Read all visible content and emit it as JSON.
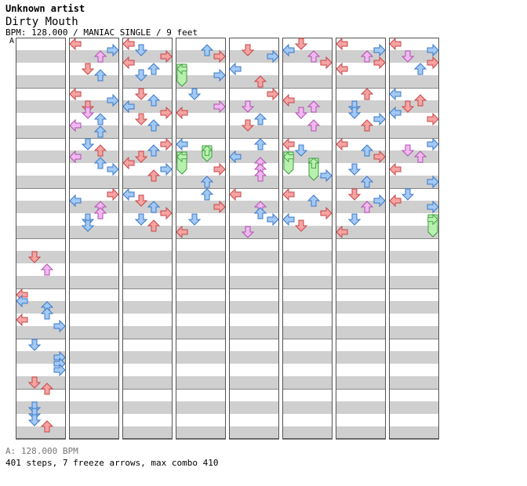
{
  "song": {
    "artist": "Unknown artist",
    "title": "Dirty Mouth",
    "meta": "BPM: 128.000 / MANIAC SINGLE / 9 feet",
    "bpm_marker": "A"
  },
  "footer": {
    "bpm": "A: 128.000 BPM",
    "stats": "401 steps, 7 freeze arrows, max combo 410"
  },
  "colors": {
    "quarter": "#f5a3a3",
    "quarter_stroke": "#c84646",
    "eighth": "#a3c9f5",
    "eighth_stroke": "#3a78c8",
    "sixteenth": "#f0b8f0",
    "sixteenth_stroke": "#b050b0",
    "freeze": "#b8f0b0",
    "freeze_stroke": "#3c9c3c",
    "stripe": "#cfcfcf",
    "background": "#ffffff"
  },
  "icons": [
    "left-arrow-icon",
    "down-arrow-icon",
    "up-arrow-icon",
    "right-arrow-icon",
    "freeze-arrow-icon"
  ],
  "chart_data": {
    "type": "step-chart",
    "mode": "MANIAC SINGLE",
    "difficulty_feet": 9,
    "bpm": 128.0,
    "lanes": [
      "left",
      "down",
      "up",
      "right"
    ],
    "columns": 8,
    "measures_per_column": 8,
    "steps": 401,
    "freeze_arrows": 7,
    "max_combo": 410,
    "notes": [
      {
        "m": 4,
        "b": 0.5,
        "lane": 1,
        "k": "q"
      },
      {
        "m": 4,
        "b": 1,
        "lane": 2,
        "k": "s"
      },
      {
        "m": 5,
        "b": 0,
        "lane": 0,
        "k": "q"
      },
      {
        "m": 5,
        "b": 0.25,
        "lane": 0,
        "k": "e"
      },
      {
        "m": 5,
        "b": 0.5,
        "lane": 2,
        "k": "e"
      },
      {
        "m": 5,
        "b": 0.75,
        "lane": 2,
        "k": "e"
      },
      {
        "m": 5,
        "b": 1,
        "lane": 0,
        "k": "q"
      },
      {
        "m": 5,
        "b": 1.25,
        "lane": 3,
        "k": "e"
      },
      {
        "m": 6,
        "b": 0,
        "lane": 1,
        "k": "e"
      },
      {
        "m": 6,
        "b": 0.5,
        "lane": 3,
        "k": "e"
      },
      {
        "m": 6,
        "b": 0.75,
        "lane": 3,
        "k": "e"
      },
      {
        "m": 6,
        "b": 1,
        "lane": 3,
        "k": "e"
      },
      {
        "m": 6,
        "b": 1.5,
        "lane": 1,
        "k": "q"
      },
      {
        "m": 6,
        "b": 1.75,
        "lane": 2,
        "k": "q"
      },
      {
        "m": 7,
        "b": 0.5,
        "lane": 1,
        "k": "e"
      },
      {
        "m": 7,
        "b": 0.75,
        "lane": 1,
        "k": "e"
      },
      {
        "m": 7,
        "b": 1,
        "lane": 1,
        "k": "e"
      },
      {
        "m": 7,
        "b": 1.25,
        "lane": 2,
        "k": "q"
      },
      {
        "m": 8,
        "b": 0,
        "lane": 0,
        "k": "q"
      },
      {
        "m": 8,
        "b": 0.25,
        "lane": 3,
        "k": "e"
      },
      {
        "m": 8,
        "b": 0.5,
        "lane": 2,
        "k": "s"
      },
      {
        "m": 8,
        "b": 1,
        "lane": 1,
        "k": "q"
      },
      {
        "m": 8,
        "b": 1.25,
        "lane": 2,
        "k": "e"
      },
      {
        "m": 9,
        "b": 0,
        "lane": 0,
        "k": "q"
      },
      {
        "m": 9,
        "b": 0.25,
        "lane": 3,
        "k": "e"
      },
      {
        "m": 9,
        "b": 0.5,
        "lane": 1,
        "k": "q"
      },
      {
        "m": 9,
        "b": 0.75,
        "lane": 1,
        "k": "s"
      },
      {
        "m": 9,
        "b": 1,
        "lane": 2,
        "k": "e"
      },
      {
        "m": 9,
        "b": 1.25,
        "lane": 0,
        "k": "s"
      },
      {
        "m": 9,
        "b": 1.5,
        "lane": 2,
        "k": "e"
      },
      {
        "m": 10,
        "b": 0,
        "lane": 1,
        "k": "e"
      },
      {
        "m": 10,
        "b": 0.25,
        "lane": 2,
        "k": "q"
      },
      {
        "m": 10,
        "b": 0.5,
        "lane": 0,
        "k": "s"
      },
      {
        "m": 10,
        "b": 0.75,
        "lane": 2,
        "k": "e"
      },
      {
        "m": 10,
        "b": 1,
        "lane": 3,
        "k": "e"
      },
      {
        "m": 11,
        "b": 0,
        "lane": 3,
        "k": "q"
      },
      {
        "m": 11,
        "b": 0.25,
        "lane": 0,
        "k": "e"
      },
      {
        "m": 11,
        "b": 0.5,
        "lane": 2,
        "k": "s"
      },
      {
        "m": 11,
        "b": 0.75,
        "lane": 2,
        "k": "s"
      },
      {
        "m": 11,
        "b": 1,
        "lane": 1,
        "k": "e"
      },
      {
        "m": 11,
        "b": 1.25,
        "lane": 1,
        "k": "e"
      },
      {
        "m": 16,
        "b": 0,
        "lane": 0,
        "k": "q"
      },
      {
        "m": 16,
        "b": 0.25,
        "lane": 1,
        "k": "e"
      },
      {
        "m": 16,
        "b": 0.5,
        "lane": 3,
        "k": "q"
      },
      {
        "m": 16,
        "b": 0.75,
        "lane": 0,
        "k": "q"
      },
      {
        "m": 16,
        "b": 1,
        "lane": 2,
        "k": "e"
      },
      {
        "m": 16,
        "b": 1.25,
        "lane": 1,
        "k": "e"
      },
      {
        "m": 17,
        "b": 0,
        "lane": 1,
        "k": "q"
      },
      {
        "m": 17,
        "b": 0.25,
        "lane": 2,
        "k": "e"
      },
      {
        "m": 17,
        "b": 0.5,
        "lane": 0,
        "k": "e"
      },
      {
        "m": 17,
        "b": 0.75,
        "lane": 3,
        "k": "q"
      },
      {
        "m": 17,
        "b": 1,
        "lane": 1,
        "k": "q"
      },
      {
        "m": 17,
        "b": 1.25,
        "lane": 2,
        "k": "e"
      },
      {
        "m": 18,
        "b": 0,
        "lane": 3,
        "k": "q"
      },
      {
        "m": 18,
        "b": 0.25,
        "lane": 2,
        "k": "e"
      },
      {
        "m": 18,
        "b": 0.5,
        "lane": 1,
        "k": "q"
      },
      {
        "m": 18,
        "b": 0.75,
        "lane": 0,
        "k": "q"
      },
      {
        "m": 18,
        "b": 1,
        "lane": 3,
        "k": "e"
      },
      {
        "m": 18,
        "b": 1.25,
        "lane": 2,
        "k": "q"
      },
      {
        "m": 19,
        "b": 0,
        "lane": 0,
        "k": "e"
      },
      {
        "m": 19,
        "b": 0.25,
        "lane": 1,
        "k": "q"
      },
      {
        "m": 19,
        "b": 0.5,
        "lane": 2,
        "k": "e"
      },
      {
        "m": 19,
        "b": 0.75,
        "lane": 3,
        "k": "q"
      },
      {
        "m": 19,
        "b": 1,
        "lane": 1,
        "k": "e"
      },
      {
        "m": 19,
        "b": 1.25,
        "lane": 2,
        "k": "q"
      },
      {
        "m": 24,
        "b": 0.25,
        "lane": 2,
        "k": "e"
      },
      {
        "m": 24,
        "b": 0.5,
        "lane": 3,
        "k": "q"
      },
      {
        "m": 24,
        "b": 1,
        "lane": 0,
        "k": "F",
        "len": 0.5
      },
      {
        "m": 24,
        "b": 1.25,
        "lane": 3,
        "k": "e"
      },
      {
        "m": 25,
        "b": 0,
        "lane": 1,
        "k": "e"
      },
      {
        "m": 25,
        "b": 0.5,
        "lane": 3,
        "k": "s"
      },
      {
        "m": 25,
        "b": 0.75,
        "lane": 0,
        "k": "q"
      },
      {
        "m": 26,
        "b": 0,
        "lane": 0,
        "k": "e"
      },
      {
        "m": 26,
        "b": 0.25,
        "lane": 2,
        "k": "F",
        "len": 0.25
      },
      {
        "m": 26,
        "b": 0.5,
        "lane": 0,
        "k": "F",
        "len": 0.5
      },
      {
        "m": 26,
        "b": 1,
        "lane": 3,
        "k": "q"
      },
      {
        "m": 26,
        "b": 1.5,
        "lane": 2,
        "k": "e"
      },
      {
        "m": 27,
        "b": 0,
        "lane": 2,
        "k": "e"
      },
      {
        "m": 27,
        "b": 0.5,
        "lane": 3,
        "k": "q"
      },
      {
        "m": 27,
        "b": 1,
        "lane": 1,
        "k": "e"
      },
      {
        "m": 27,
        "b": 1.5,
        "lane": 0,
        "k": "q"
      },
      {
        "m": 32,
        "b": 0.25,
        "lane": 1,
        "k": "q"
      },
      {
        "m": 32,
        "b": 0.5,
        "lane": 3,
        "k": "e"
      },
      {
        "m": 32,
        "b": 1,
        "lane": 0,
        "k": "e"
      },
      {
        "m": 32,
        "b": 1.5,
        "lane": 2,
        "k": "q"
      },
      {
        "m": 33,
        "b": 0,
        "lane": 3,
        "k": "q"
      },
      {
        "m": 33,
        "b": 0.5,
        "lane": 1,
        "k": "s"
      },
      {
        "m": 33,
        "b": 1,
        "lane": 2,
        "k": "e"
      },
      {
        "m": 33,
        "b": 1.25,
        "lane": 1,
        "k": "q"
      },
      {
        "m": 34,
        "b": 0,
        "lane": 2,
        "k": "e"
      },
      {
        "m": 34,
        "b": 0.5,
        "lane": 0,
        "k": "e"
      },
      {
        "m": 34,
        "b": 0.75,
        "lane": 2,
        "k": "s"
      },
      {
        "m": 34,
        "b": 1,
        "lane": 2,
        "k": "s"
      },
      {
        "m": 34,
        "b": 1.25,
        "lane": 2,
        "k": "s"
      },
      {
        "m": 35,
        "b": 0,
        "lane": 0,
        "k": "q"
      },
      {
        "m": 35,
        "b": 0.5,
        "lane": 2,
        "k": "s"
      },
      {
        "m": 35,
        "b": 0.75,
        "lane": 2,
        "k": "e"
      },
      {
        "m": 35,
        "b": 1,
        "lane": 3,
        "k": "e"
      },
      {
        "m": 35,
        "b": 1.5,
        "lane": 1,
        "k": "s"
      },
      {
        "m": 40,
        "b": 0,
        "lane": 1,
        "k": "q"
      },
      {
        "m": 40,
        "b": 0.25,
        "lane": 0,
        "k": "e"
      },
      {
        "m": 40,
        "b": 0.5,
        "lane": 2,
        "k": "s"
      },
      {
        "m": 40,
        "b": 0.75,
        "lane": 3,
        "k": "q"
      },
      {
        "m": 41,
        "b": 0.25,
        "lane": 0,
        "k": "q"
      },
      {
        "m": 41,
        "b": 0.5,
        "lane": 2,
        "k": "s"
      },
      {
        "m": 41,
        "b": 0.75,
        "lane": 1,
        "k": "s"
      },
      {
        "m": 41,
        "b": 1.25,
        "lane": 2,
        "k": "s"
      },
      {
        "m": 42,
        "b": 0,
        "lane": 0,
        "k": "q"
      },
      {
        "m": 42,
        "b": 0.25,
        "lane": 1,
        "k": "e"
      },
      {
        "m": 42,
        "b": 0.5,
        "lane": 0,
        "k": "F",
        "len": 0.5
      },
      {
        "m": 42,
        "b": 0.75,
        "lane": 2,
        "k": "F",
        "len": 0.5
      },
      {
        "m": 42,
        "b": 1.25,
        "lane": 3,
        "k": "e"
      },
      {
        "m": 43,
        "b": 0,
        "lane": 0,
        "k": "q"
      },
      {
        "m": 43,
        "b": 0.25,
        "lane": 2,
        "k": "e"
      },
      {
        "m": 43,
        "b": 0.75,
        "lane": 3,
        "k": "q"
      },
      {
        "m": 43,
        "b": 1,
        "lane": 0,
        "k": "e"
      },
      {
        "m": 43,
        "b": 1.25,
        "lane": 1,
        "k": "q"
      },
      {
        "m": 48,
        "b": 0,
        "lane": 0,
        "k": "q"
      },
      {
        "m": 48,
        "b": 0.25,
        "lane": 3,
        "k": "e"
      },
      {
        "m": 48,
        "b": 0.5,
        "lane": 2,
        "k": "s"
      },
      {
        "m": 48,
        "b": 0.75,
        "lane": 3,
        "k": "q"
      },
      {
        "m": 48,
        "b": 1,
        "lane": 0,
        "k": "q"
      },
      {
        "m": 49,
        "b": 0,
        "lane": 2,
        "k": "q"
      },
      {
        "m": 49,
        "b": 0.5,
        "lane": 1,
        "k": "e"
      },
      {
        "m": 49,
        "b": 0.75,
        "lane": 1,
        "k": "e"
      },
      {
        "m": 49,
        "b": 1,
        "lane": 3,
        "k": "e"
      },
      {
        "m": 49,
        "b": 1.25,
        "lane": 2,
        "k": "q"
      },
      {
        "m": 50,
        "b": 0,
        "lane": 0,
        "k": "q"
      },
      {
        "m": 50,
        "b": 0.25,
        "lane": 2,
        "k": "e"
      },
      {
        "m": 50,
        "b": 0.5,
        "lane": 3,
        "k": "q"
      },
      {
        "m": 50,
        "b": 1,
        "lane": 1,
        "k": "e"
      },
      {
        "m": 50,
        "b": 1.5,
        "lane": 2,
        "k": "e"
      },
      {
        "m": 51,
        "b": 0,
        "lane": 1,
        "k": "q"
      },
      {
        "m": 51,
        "b": 0.25,
        "lane": 3,
        "k": "e"
      },
      {
        "m": 51,
        "b": 0.5,
        "lane": 2,
        "k": "s"
      },
      {
        "m": 51,
        "b": 1,
        "lane": 1,
        "k": "e"
      },
      {
        "m": 51,
        "b": 1.5,
        "lane": 0,
        "k": "q"
      },
      {
        "m": 56,
        "b": 0,
        "lane": 0,
        "k": "q"
      },
      {
        "m": 56,
        "b": 0.25,
        "lane": 3,
        "k": "e"
      },
      {
        "m": 56,
        "b": 0.5,
        "lane": 1,
        "k": "s"
      },
      {
        "m": 56,
        "b": 0.75,
        "lane": 3,
        "k": "q"
      },
      {
        "m": 56,
        "b": 1,
        "lane": 2,
        "k": "e"
      },
      {
        "m": 57,
        "b": 0,
        "lane": 0,
        "k": "e"
      },
      {
        "m": 57,
        "b": 0.25,
        "lane": 2,
        "k": "q"
      },
      {
        "m": 57,
        "b": 0.5,
        "lane": 1,
        "k": "q"
      },
      {
        "m": 57,
        "b": 0.75,
        "lane": 0,
        "k": "e"
      },
      {
        "m": 57,
        "b": 1,
        "lane": 3,
        "k": "q"
      },
      {
        "m": 58,
        "b": 0,
        "lane": 3,
        "k": "e"
      },
      {
        "m": 58,
        "b": 0.25,
        "lane": 1,
        "k": "s"
      },
      {
        "m": 58,
        "b": 0.5,
        "lane": 2,
        "k": "s"
      },
      {
        "m": 58,
        "b": 1,
        "lane": 0,
        "k": "q"
      },
      {
        "m": 58,
        "b": 1.5,
        "lane": 3,
        "k": "e"
      },
      {
        "m": 59,
        "b": 0,
        "lane": 1,
        "k": "e"
      },
      {
        "m": 59,
        "b": 0.25,
        "lane": 0,
        "k": "q"
      },
      {
        "m": 59,
        "b": 0.5,
        "lane": 3,
        "k": "e"
      },
      {
        "m": 59,
        "b": 1,
        "lane": 3,
        "k": "F",
        "len": 0.5
      }
    ]
  }
}
